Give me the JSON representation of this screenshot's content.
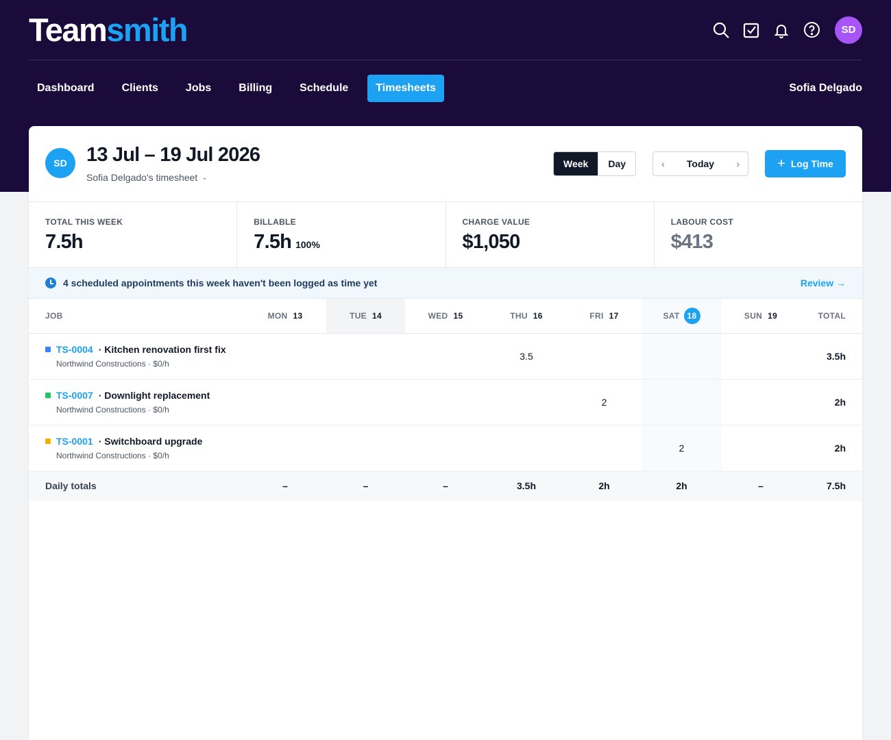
{
  "app": {
    "logo_part1": "Team",
    "logo_part2": "smith",
    "brand_color": "#1da1f2",
    "nav_bg": "#1a0b3b",
    "icons": [
      "search-icon",
      "tasks-check-icon",
      "bell-icon",
      "help-icon"
    ],
    "avatar_initials": "SD",
    "user_name": "Sofia Delgado"
  },
  "nav": {
    "items": [
      {
        "label": "Dashboard",
        "active": false
      },
      {
        "label": "Clients",
        "active": false
      },
      {
        "label": "Jobs",
        "active": false
      },
      {
        "label": "Billing",
        "active": false
      },
      {
        "label": "Schedule",
        "active": false
      },
      {
        "label": "Timesheets",
        "active": true
      }
    ]
  },
  "timesheet": {
    "avatar_initials": "SD",
    "range": "13 Jul – 19 Jul 2026",
    "subtitle": "Sofia Delgado's timesheet",
    "view_week": "Week",
    "view_day": "Day",
    "today_label": "Today",
    "log_time_label": "Log Time"
  },
  "stats": [
    {
      "label": "TOTAL THIS WEEK",
      "value": "7.5h",
      "extra": ""
    },
    {
      "label": "BILLABLE",
      "value": "7.5h",
      "extra": "100%"
    },
    {
      "label": "CHARGE VALUE",
      "value": "$1,050",
      "extra": ""
    },
    {
      "label": "LABOUR COST",
      "value": "$413",
      "extra": ""
    }
  ],
  "banner": {
    "message": "4 scheduled appointments this week haven't been logged as time yet",
    "action": "Review →"
  },
  "grid": {
    "job_header": "JOB",
    "total_header": "TOTAL",
    "days": [
      {
        "day": "MON",
        "num": "13"
      },
      {
        "day": "TUE",
        "num": "14"
      },
      {
        "day": "WED",
        "num": "15"
      },
      {
        "day": "THU",
        "num": "16"
      },
      {
        "day": "FRI",
        "num": "17"
      },
      {
        "day": "SAT",
        "num": "18"
      },
      {
        "day": "SUN",
        "num": "19"
      }
    ],
    "rows": [
      {
        "id": "TS-0004",
        "title": "· Kitchen renovation first fix",
        "client": "Northwind Constructions · $0/h",
        "color": "#3b82f6",
        "hours": [
          "",
          "",
          "",
          "3.5",
          "",
          "",
          ""
        ],
        "total": "3.5h"
      },
      {
        "id": "TS-0007",
        "title": "· Downlight replacement",
        "client": "Northwind Constructions · $0/h",
        "color": "#22c55e",
        "hours": [
          "",
          "",
          "",
          "",
          "2",
          "",
          ""
        ],
        "total": "2h"
      },
      {
        "id": "TS-0001",
        "title": "· Switchboard upgrade",
        "client": "Northwind Constructions · $0/h",
        "color": "#eab308",
        "hours": [
          "",
          "",
          "",
          "",
          "",
          "2",
          ""
        ],
        "total": "2h"
      }
    ],
    "totals_label": "Daily totals",
    "daily_totals": [
      "–",
      "–",
      "–",
      "3.5h",
      "2h",
      "2h",
      "–"
    ],
    "grand_total": "7.5h"
  }
}
